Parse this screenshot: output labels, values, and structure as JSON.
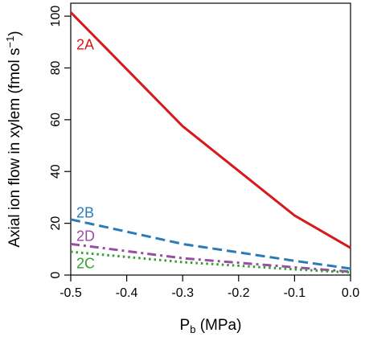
{
  "chart_data": {
    "type": "line",
    "xlabel": {
      "main": "P",
      "sub": "b",
      "rest": " (MPa)"
    },
    "ylabel": {
      "main": "Axial ion flow in xylem (fmol s",
      "sup": "−1",
      "rest": ")"
    },
    "xlim": [
      -0.5,
      0.0
    ],
    "ylim": [
      0,
      105
    ],
    "x_ticks": [
      -0.5,
      -0.4,
      -0.3,
      -0.2,
      -0.1,
      0.0
    ],
    "x_tick_labels": [
      "-0.5",
      "-0.4",
      "-0.3",
      "-0.2",
      "-0.1",
      "0.0"
    ],
    "y_ticks": [
      0,
      20,
      40,
      60,
      80,
      100
    ],
    "y_tick_labels": [
      "0",
      "20",
      "40",
      "60",
      "80",
      "100"
    ],
    "grid": false,
    "series": [
      {
        "name": "2A",
        "color": "#d7191c",
        "dash": "solid",
        "x": [
          -0.5,
          -0.3,
          -0.1,
          0.0
        ],
        "y": [
          101.5,
          57.5,
          23.0,
          10.5
        ]
      },
      {
        "name": "2B",
        "color": "#2b7bba",
        "dash": "dashed",
        "x": [
          -0.5,
          -0.3,
          -0.1,
          0.0
        ],
        "y": [
          21.5,
          12.0,
          5.5,
          2.5
        ]
      },
      {
        "name": "2D",
        "color": "#984ea3",
        "dash": "dashdot",
        "x": [
          -0.5,
          -0.3,
          -0.1,
          0.0
        ],
        "y": [
          12.0,
          6.5,
          3.0,
          1.3
        ]
      },
      {
        "name": "2C",
        "color": "#33a02c",
        "dash": "dotted",
        "x": [
          -0.5,
          -0.3,
          -0.1,
          0.0
        ],
        "y": [
          9.0,
          5.0,
          2.2,
          1.0
        ]
      }
    ],
    "series_label_x": -0.49,
    "series_label_y": [
      89,
      24,
      15,
      4.5
    ]
  }
}
